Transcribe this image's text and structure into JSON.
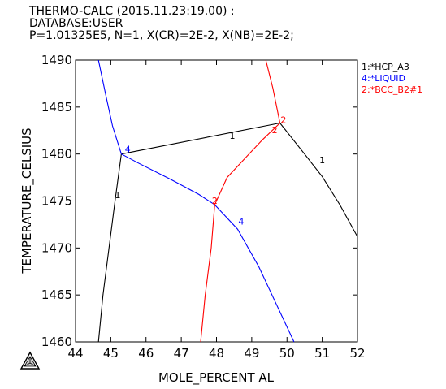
{
  "header": {
    "line1": "THERMO-CALC (2015.11.23:19.00) :",
    "line2": "DATABASE:USER",
    "line3": "P=1.01325E5, N=1, X(CR)=2E-2, X(NB)=2E-2;"
  },
  "chart_data": {
    "type": "line",
    "xlabel": "MOLE_PERCENT AL",
    "ylabel": "TEMPERATURE_CELSIUS",
    "xlim": [
      44,
      52
    ],
    "ylim": [
      1460,
      1490
    ],
    "xticks": [
      44,
      45,
      46,
      47,
      48,
      49,
      50,
      51,
      52
    ],
    "yticks": [
      1460,
      1465,
      1470,
      1475,
      1480,
      1485,
      1490
    ],
    "grid": false,
    "legend_position": "top-right, outside plot",
    "legend": [
      {
        "id": 1,
        "label": "1:*HCP_A3",
        "color": "#000000"
      },
      {
        "id": 4,
        "label": "4:*LIQUID",
        "color": "#0000ff"
      },
      {
        "id": 2,
        "label": "2:*BCC_B2#1",
        "color": "#ff0000"
      }
    ],
    "series": [
      {
        "phase": 1,
        "color": "#000000",
        "x": [
          44.65,
          44.78,
          44.95,
          45.12,
          45.3
        ],
        "y": [
          1460,
          1465,
          1470,
          1475,
          1480
        ]
      },
      {
        "phase": 1,
        "color": "#000000",
        "x": [
          45.3,
          49.8
        ],
        "y": [
          1480,
          1483.3
        ]
      },
      {
        "phase": 1,
        "color": "#000000",
        "x": [
          49.8,
          50.5,
          51.0,
          51.5,
          52.0
        ],
        "y": [
          1483.3,
          1480.0,
          1477.6,
          1474.6,
          1471.2
        ]
      },
      {
        "phase": 4,
        "color": "#0000ff",
        "x": [
          44.65,
          44.85,
          45.05,
          45.3
        ],
        "y": [
          1490,
          1486.4,
          1483.0,
          1480
        ]
      },
      {
        "phase": 4,
        "color": "#0000ff",
        "x": [
          45.3,
          45.8,
          46.7,
          47.5,
          47.95
        ],
        "y": [
          1480,
          1479.0,
          1477.3,
          1475.7,
          1474.6
        ]
      },
      {
        "phase": 4,
        "color": "#0000ff",
        "x": [
          47.95,
          48.6,
          49.2,
          49.7,
          50.2
        ],
        "y": [
          1474.6,
          1472.0,
          1468.0,
          1464.0,
          1460
        ]
      },
      {
        "phase": 2,
        "color": "#ff0000",
        "x": [
          47.55,
          47.68,
          47.85,
          47.95
        ],
        "y": [
          1460,
          1465.0,
          1470.0,
          1474.6
        ]
      },
      {
        "phase": 2,
        "color": "#ff0000",
        "x": [
          47.95,
          48.3,
          48.8,
          49.3,
          49.8
        ],
        "y": [
          1474.6,
          1477.5,
          1479.5,
          1481.5,
          1483.3
        ]
      },
      {
        "phase": 2,
        "color": "#ff0000",
        "x": [
          49.8,
          49.6,
          49.4
        ],
        "y": [
          1483.3,
          1487.0,
          1490
        ]
      }
    ],
    "curve_labels": [
      {
        "text": "1",
        "x": 48.45,
        "y": 1481.6,
        "color": "#000000"
      },
      {
        "text": "1",
        "x": 51.0,
        "y": 1479.0,
        "color": "#000000"
      },
      {
        "text": "1",
        "x": 45.2,
        "y": 1475.3,
        "color": "#000000"
      },
      {
        "text": "4",
        "x": 45.48,
        "y": 1480.2,
        "color": "#0000ff"
      },
      {
        "text": "4",
        "x": 48.7,
        "y": 1472.5,
        "color": "#0000ff"
      },
      {
        "text": "2",
        "x": 49.9,
        "y": 1483.3,
        "color": "#ff0000"
      },
      {
        "text": "2",
        "x": 49.65,
        "y": 1482.2,
        "color": "#ff0000"
      },
      {
        "text": "2",
        "x": 47.95,
        "y": 1474.7,
        "color": "#ff0000"
      }
    ]
  }
}
